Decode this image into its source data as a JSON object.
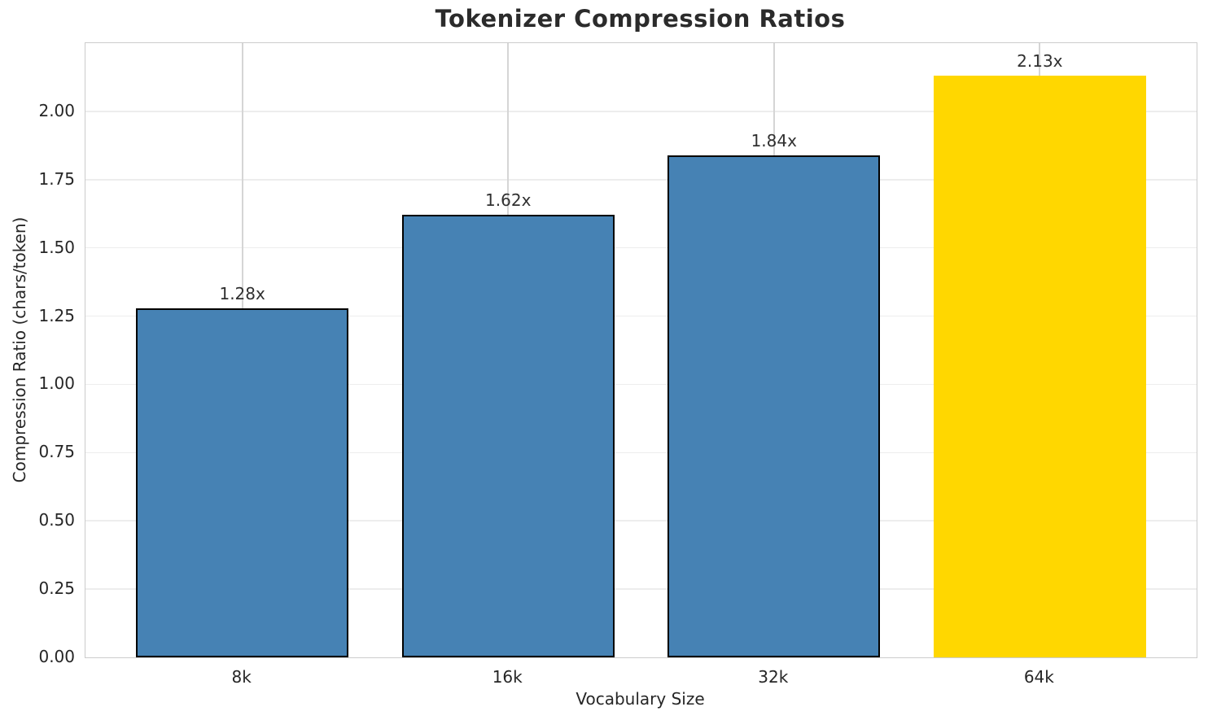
{
  "chart_data": {
    "type": "bar",
    "title": "Tokenizer Compression Ratios",
    "xlabel": "Vocabulary Size",
    "ylabel": "Compression Ratio (chars/token)",
    "categories": [
      "8k",
      "16k",
      "32k",
      "64k"
    ],
    "values": [
      1.28,
      1.62,
      1.84,
      2.13
    ],
    "bar_labels": [
      "1.28x",
      "1.62x",
      "1.84x",
      "2.13x"
    ],
    "bar_colors": [
      "#4682B4",
      "#4682B4",
      "#4682B4",
      "#FFD700"
    ],
    "bar_edge_colors": [
      "#000000",
      "#000000",
      "#000000",
      "none"
    ],
    "ylim": [
      0,
      2.25
    ],
    "yticks": [
      0.0,
      0.25,
      0.5,
      0.75,
      1.0,
      1.25,
      1.5,
      1.75,
      2.0
    ],
    "ytick_labels": [
      "0.00",
      "0.25",
      "0.50",
      "0.75",
      "1.00",
      "1.25",
      "1.50",
      "1.75",
      "2.00"
    ],
    "grid": true,
    "grid_axis": "both",
    "legend": "none",
    "highlight_index": 3
  },
  "colors": {
    "bar_default": "#4682B4",
    "bar_highlight": "#FFD700",
    "bar_edge": "#000000",
    "spine": "#cccccc",
    "grid_horizontal": "#ededed",
    "grid_vertical": "#d5d5d5",
    "title_text": "#2b2b2b",
    "tick_text": "#262626",
    "background": "#ffffff"
  }
}
